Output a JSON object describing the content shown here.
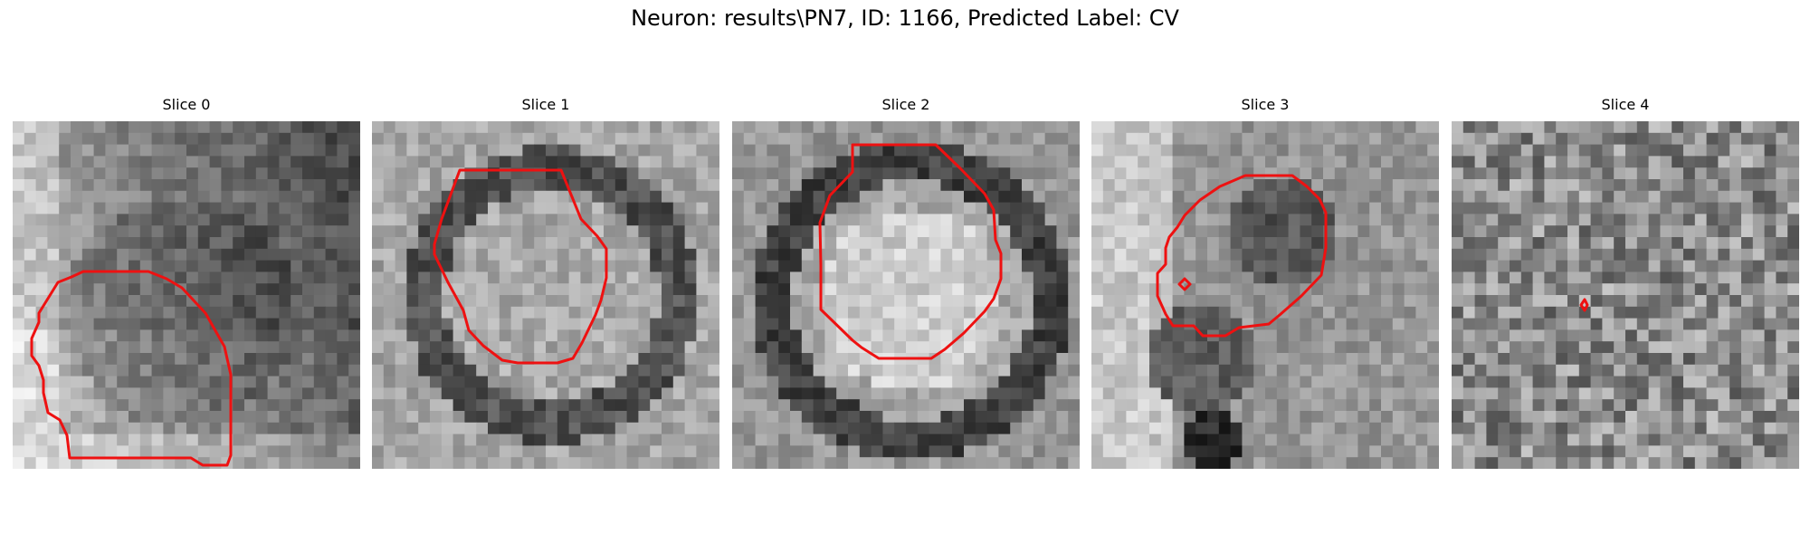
{
  "figure": {
    "title": "Neuron: results\\PN7, ID: 1166, Predicted Label: CV",
    "contour_color": "#ee1111",
    "panels": [
      {
        "title": "Slice 0"
      },
      {
        "title": "Slice 1"
      },
      {
        "title": "Slice 2"
      },
      {
        "title": "Slice 3"
      },
      {
        "title": "Slice 4"
      }
    ]
  }
}
